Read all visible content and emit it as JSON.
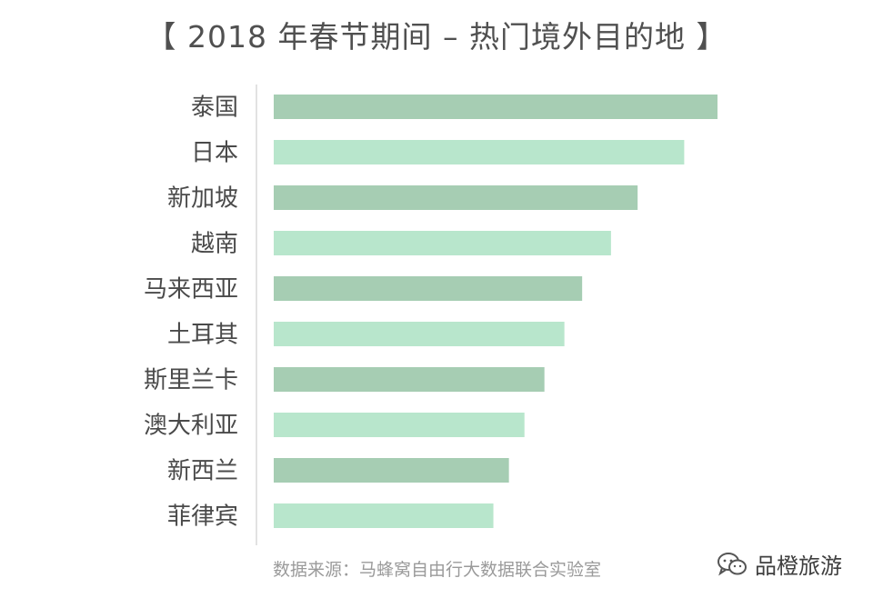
{
  "source_note": "数据来源：马蜂窝自由行大数据联合实验室",
  "watermark": {
    "text": "品橙旅游",
    "icon": "wechat-icon"
  },
  "colors": {
    "bar_dark": "#a6cdb3",
    "bar_light": "#b8e6cc",
    "axis": "#d9d9d9"
  },
  "chart_data": {
    "type": "bar",
    "orientation": "horizontal",
    "title": "【 2018 年春节期间 – 热门境外目的地 】",
    "xlabel": "",
    "ylabel": "",
    "categories": [
      "泰国",
      "日本",
      "新加坡",
      "越南",
      "马来西亚",
      "土耳其",
      "斯里兰卡",
      "澳大利亚",
      "新西兰",
      "菲律宾"
    ],
    "values": [
      100,
      92.5,
      82,
      76,
      69.5,
      65.5,
      61,
      56.5,
      53,
      49.5
    ],
    "xlim": [
      0,
      100
    ],
    "grid": false,
    "legend": "none"
  }
}
